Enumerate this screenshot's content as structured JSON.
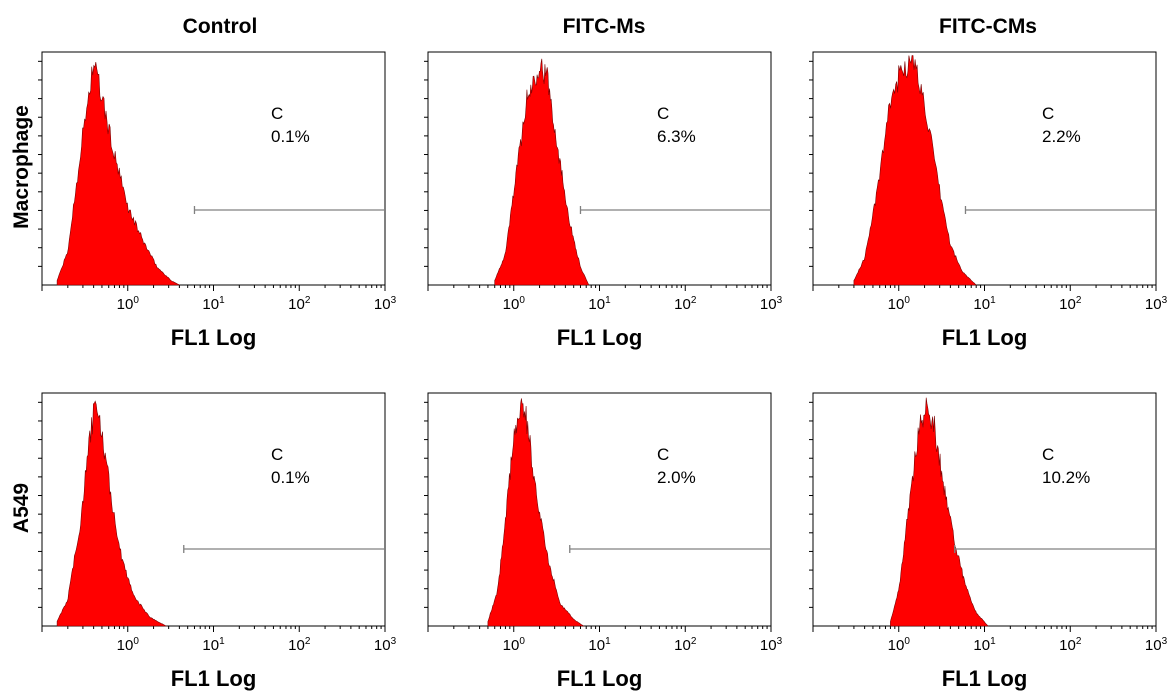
{
  "colors": {
    "histogram_fill": "#ff0000",
    "histogram_edge": "#7a0000",
    "axis": "#000000",
    "gate_line": "#808080"
  },
  "column_titles": [
    "Control",
    "FITC-Ms",
    "FITC-CMs"
  ],
  "row_labels": [
    "Macrophage",
    "A549"
  ],
  "chart_data": [
    {
      "type": "area",
      "row": "Macrophage",
      "column": "Control",
      "xlabel": "FL1 Log",
      "x_scale": "log",
      "xlim": [
        0.1,
        1000
      ],
      "xticks": [
        "10^0",
        "10^1",
        "10^2",
        "10^3"
      ],
      "gate": {
        "label": "C",
        "percent": "0.1%",
        "x_range": [
          6,
          1000
        ]
      },
      "histogram": {
        "x": [
          0.15,
          0.2,
          0.3,
          0.4,
          0.5,
          0.7,
          1.0,
          1.5,
          2.2,
          3.2,
          4.0
        ],
        "y": [
          2,
          15,
          68,
          100,
          84,
          58,
          35,
          20,
          8,
          2,
          0
        ]
      }
    },
    {
      "type": "area",
      "row": "Macrophage",
      "column": "FITC-Ms",
      "xlabel": "FL1 Log",
      "x_scale": "log",
      "xlim": [
        0.1,
        1000
      ],
      "xticks": [
        "10^0",
        "10^1",
        "10^2",
        "10^3"
      ],
      "gate": {
        "label": "C",
        "percent": "6.3%",
        "x_range": [
          6,
          1000
        ]
      },
      "histogram": {
        "x": [
          0.6,
          0.8,
          1.0,
          1.4,
          2.0,
          2.5,
          3.3,
          4.5,
          6.0,
          7.5
        ],
        "y": [
          2,
          14,
          42,
          82,
          100,
          92,
          60,
          28,
          8,
          0
        ]
      }
    },
    {
      "type": "area",
      "row": "Macrophage",
      "column": "FITC-CMs",
      "xlabel": "FL1 Log",
      "x_scale": "log",
      "xlim": [
        0.1,
        1000
      ],
      "xticks": [
        "10^0",
        "10^1",
        "10^2",
        "10^3"
      ],
      "gate": {
        "label": "C",
        "percent": "2.2%",
        "x_range": [
          6,
          1000
        ]
      },
      "histogram": {
        "x": [
          0.3,
          0.4,
          0.55,
          0.8,
          1.1,
          1.5,
          2.0,
          2.8,
          4.0,
          5.5,
          8.0
        ],
        "y": [
          2,
          12,
          40,
          82,
          98,
          100,
          82,
          48,
          18,
          6,
          0
        ]
      }
    },
    {
      "type": "area",
      "row": "A549",
      "column": "Control",
      "xlabel": "FL1 Log",
      "x_scale": "log",
      "xlim": [
        0.1,
        1000
      ],
      "xticks": [
        "10^0",
        "10^1",
        "10^2",
        "10^3"
      ],
      "gate": {
        "label": "C",
        "percent": "0.1%",
        "x_range": [
          4.5,
          1000
        ]
      },
      "histogram": {
        "x": [
          0.15,
          0.2,
          0.28,
          0.35,
          0.42,
          0.5,
          0.65,
          0.85,
          1.2,
          1.8,
          2.8
        ],
        "y": [
          2,
          12,
          46,
          80,
          100,
          86,
          56,
          30,
          13,
          4,
          0
        ]
      }
    },
    {
      "type": "area",
      "row": "A549",
      "column": "FITC-Ms",
      "xlabel": "FL1 Log",
      "x_scale": "log",
      "xlim": [
        0.1,
        1000
      ],
      "xticks": [
        "10^0",
        "10^1",
        "10^2",
        "10^3"
      ],
      "gate": {
        "label": "C",
        "percent": "2.0%",
        "x_range": [
          4.5,
          1000
        ]
      },
      "histogram": {
        "x": [
          0.5,
          0.65,
          0.8,
          1.0,
          1.2,
          1.4,
          1.8,
          2.5,
          3.5,
          5.0,
          6.5
        ],
        "y": [
          2,
          16,
          48,
          84,
          100,
          94,
          62,
          30,
          10,
          3,
          0
        ]
      }
    },
    {
      "type": "area",
      "row": "A549",
      "column": "FITC-CMs",
      "xlabel": "FL1 Log",
      "x_scale": "log",
      "xlim": [
        0.1,
        1000
      ],
      "xticks": [
        "10^0",
        "10^1",
        "10^2",
        "10^3"
      ],
      "gate": {
        "label": "C",
        "percent": "10.2%",
        "x_range": [
          4.5,
          1000
        ]
      },
      "histogram": {
        "x": [
          0.8,
          1.0,
          1.3,
          1.7,
          2.1,
          2.6,
          3.3,
          4.5,
          6.0,
          8.0,
          11.0
        ],
        "y": [
          2,
          16,
          52,
          88,
          100,
          90,
          64,
          38,
          18,
          6,
          0
        ]
      }
    }
  ]
}
